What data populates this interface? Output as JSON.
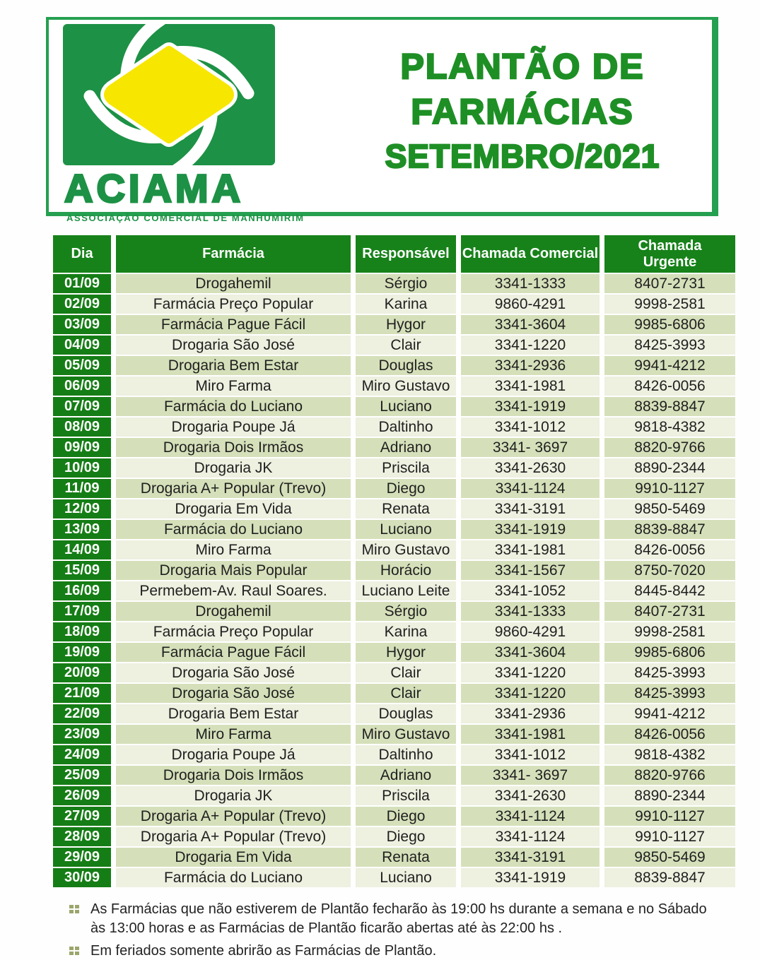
{
  "logo": {
    "acronym": "ACIAMA",
    "subtitle": "ASSOCIAÇÃO COMERCIAL DE MANHUMIRIM"
  },
  "title": {
    "line1": "PLANTÃO DE",
    "line2": "FARMÁCIAS",
    "line3": "SETEMBRO/2021"
  },
  "colors": {
    "brand_green": "#1d9145",
    "border_green": "#25a050",
    "title_green": "#1e8f25",
    "table_header_green": "#17821a",
    "day_cell_green": "#157d15",
    "row_sage": "#d5e0ba",
    "row_light": "#eef0e0",
    "logo_yellow": "#f7e600",
    "bullet_olive": "#9aa66b"
  },
  "table": {
    "headers": [
      "Dia",
      "Farmácia",
      "Responsável",
      "Chamada Comercial",
      "Chamada Urgente"
    ],
    "rows": [
      {
        "dia": "01/09",
        "farmacia": "Drogahemil",
        "responsavel": "Sérgio",
        "comercial": "3341-1333",
        "urgente": "8407-2731"
      },
      {
        "dia": "02/09",
        "farmacia": "Farmácia Preço Popular",
        "responsavel": "Karina",
        "comercial": "9860-4291",
        "urgente": "9998-2581"
      },
      {
        "dia": "03/09",
        "farmacia": "Farmácia Pague Fácil",
        "responsavel": "Hygor",
        "comercial": "3341-3604",
        "urgente": "9985-6806"
      },
      {
        "dia": "04/09",
        "farmacia": "Drogaria São José",
        "responsavel": "Clair",
        "comercial": "3341-1220",
        "urgente": "8425-3993"
      },
      {
        "dia": "05/09",
        "farmacia": "Drogaria Bem Estar",
        "responsavel": "Douglas",
        "comercial": "3341-2936",
        "urgente": "9941-4212"
      },
      {
        "dia": "06/09",
        "farmacia": "Miro Farma",
        "responsavel": "Miro Gustavo",
        "comercial": "3341-1981",
        "urgente": "8426-0056"
      },
      {
        "dia": "07/09",
        "farmacia": "Farmácia do Luciano",
        "responsavel": "Luciano",
        "comercial": "3341-1919",
        "urgente": "8839-8847"
      },
      {
        "dia": "08/09",
        "farmacia": "Drogaria Poupe Já",
        "responsavel": "Daltinho",
        "comercial": "3341-1012",
        "urgente": "9818-4382"
      },
      {
        "dia": "09/09",
        "farmacia": "Drogaria Dois Irmãos",
        "responsavel": "Adriano",
        "comercial": "3341- 3697",
        "urgente": "8820-9766"
      },
      {
        "dia": "10/09",
        "farmacia": "Drogaria JK",
        "responsavel": "Priscila",
        "comercial": "3341-2630",
        "urgente": "8890-2344"
      },
      {
        "dia": "11/09",
        "farmacia": "Drogaria A+ Popular (Trevo)",
        "responsavel": "Diego",
        "comercial": "3341-1124",
        "urgente": "9910-1127"
      },
      {
        "dia": "12/09",
        "farmacia": "Drogaria Em Vida",
        "responsavel": "Renata",
        "comercial": "3341-3191",
        "urgente": "9850-5469"
      },
      {
        "dia": "13/09",
        "farmacia": "Farmácia do Luciano",
        "responsavel": "Luciano",
        "comercial": "3341-1919",
        "urgente": "8839-8847"
      },
      {
        "dia": "14/09",
        "farmacia": "Miro Farma",
        "responsavel": "Miro Gustavo",
        "comercial": "3341-1981",
        "urgente": "8426-0056"
      },
      {
        "dia": "15/09",
        "farmacia": "Drogaria Mais Popular",
        "responsavel": "Horácio",
        "comercial": "3341-1567",
        "urgente": "8750-7020"
      },
      {
        "dia": "16/09",
        "farmacia": "Permebem-Av. Raul Soares.",
        "responsavel": "Luciano Leite",
        "comercial": "3341-1052",
        "urgente": "8445-8442"
      },
      {
        "dia": "17/09",
        "farmacia": "Drogahemil",
        "responsavel": "Sérgio",
        "comercial": "3341-1333",
        "urgente": "8407-2731"
      },
      {
        "dia": "18/09",
        "farmacia": "Farmácia Preço Popular",
        "responsavel": "Karina",
        "comercial": "9860-4291",
        "urgente": "9998-2581"
      },
      {
        "dia": "19/09",
        "farmacia": "Farmácia Pague Fácil",
        "responsavel": "Hygor",
        "comercial": "3341-3604",
        "urgente": "9985-6806"
      },
      {
        "dia": "20/09",
        "farmacia": "Drogaria São José",
        "responsavel": "Clair",
        "comercial": "3341-1220",
        "urgente": "8425-3993"
      },
      {
        "dia": "21/09",
        "farmacia": "Drogaria São José",
        "responsavel": "Clair",
        "comercial": "3341-1220",
        "urgente": "8425-3993"
      },
      {
        "dia": "22/09",
        "farmacia": "Drogaria Bem Estar",
        "responsavel": "Douglas",
        "comercial": "3341-2936",
        "urgente": "9941-4212"
      },
      {
        "dia": "23/09",
        "farmacia": "Miro Farma",
        "responsavel": "Miro Gustavo",
        "comercial": "3341-1981",
        "urgente": "8426-0056"
      },
      {
        "dia": "24/09",
        "farmacia": "Drogaria Poupe Já",
        "responsavel": "Daltinho",
        "comercial": "3341-1012",
        "urgente": "9818-4382"
      },
      {
        "dia": "25/09",
        "farmacia": "Drogaria Dois Irmãos",
        "responsavel": "Adriano",
        "comercial": "3341- 3697",
        "urgente": "8820-9766"
      },
      {
        "dia": "26/09",
        "farmacia": "Drogaria JK",
        "responsavel": "Priscila",
        "comercial": "3341-2630",
        "urgente": "8890-2344"
      },
      {
        "dia": "27/09",
        "farmacia": "Drogaria A+ Popular (Trevo)",
        "responsavel": "Diego",
        "comercial": "3341-1124",
        "urgente": "9910-1127"
      },
      {
        "dia": "28/09",
        "farmacia": "Drogaria A+ Popular (Trevo)",
        "responsavel": "Diego",
        "comercial": "3341-1124",
        "urgente": "9910-1127"
      },
      {
        "dia": "29/09",
        "farmacia": "Drogaria Em Vida",
        "responsavel": "Renata",
        "comercial": "3341-3191",
        "urgente": "9850-5469"
      },
      {
        "dia": "30/09",
        "farmacia": "Farmácia do Luciano",
        "responsavel": "Luciano",
        "comercial": "3341-1919",
        "urgente": "8839-8847"
      }
    ]
  },
  "notes": [
    "As Farmácias que não estiverem de Plantão fecharão às 19:00 hs durante a semana e no Sábado às 13:00 horas e as Farmácias de Plantão ficarão abertas até às 22:00 hs .",
    "Em feriados somente abrirão as Farmácias de Plantão."
  ]
}
